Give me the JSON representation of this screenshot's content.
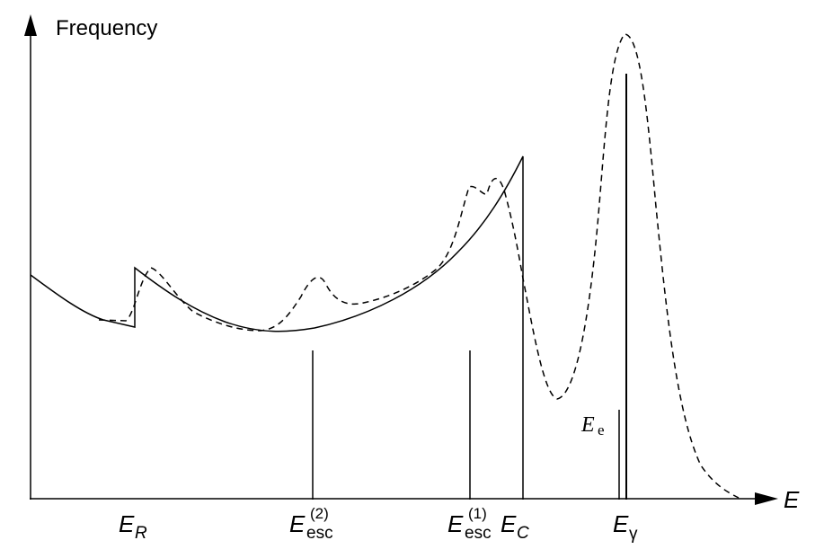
{
  "diagram": {
    "y_axis_label": "Frequency",
    "x_axis_label": "E",
    "labels": {
      "recoil": {
        "base": "E",
        "sub": "R"
      },
      "escape2": {
        "base": "E",
        "sub": "esc",
        "sup": "(2)"
      },
      "escape1": {
        "base": "E",
        "sub": "esc",
        "sup": "(1)"
      },
      "compton_edge": {
        "base": "E",
        "sub": "C"
      },
      "gamma": {
        "base": "E",
        "sub": "γ"
      },
      "electron": {
        "base": "E",
        "sub": "e"
      }
    },
    "colors": {
      "ink": "#000000",
      "background": "#ffffff"
    }
  }
}
